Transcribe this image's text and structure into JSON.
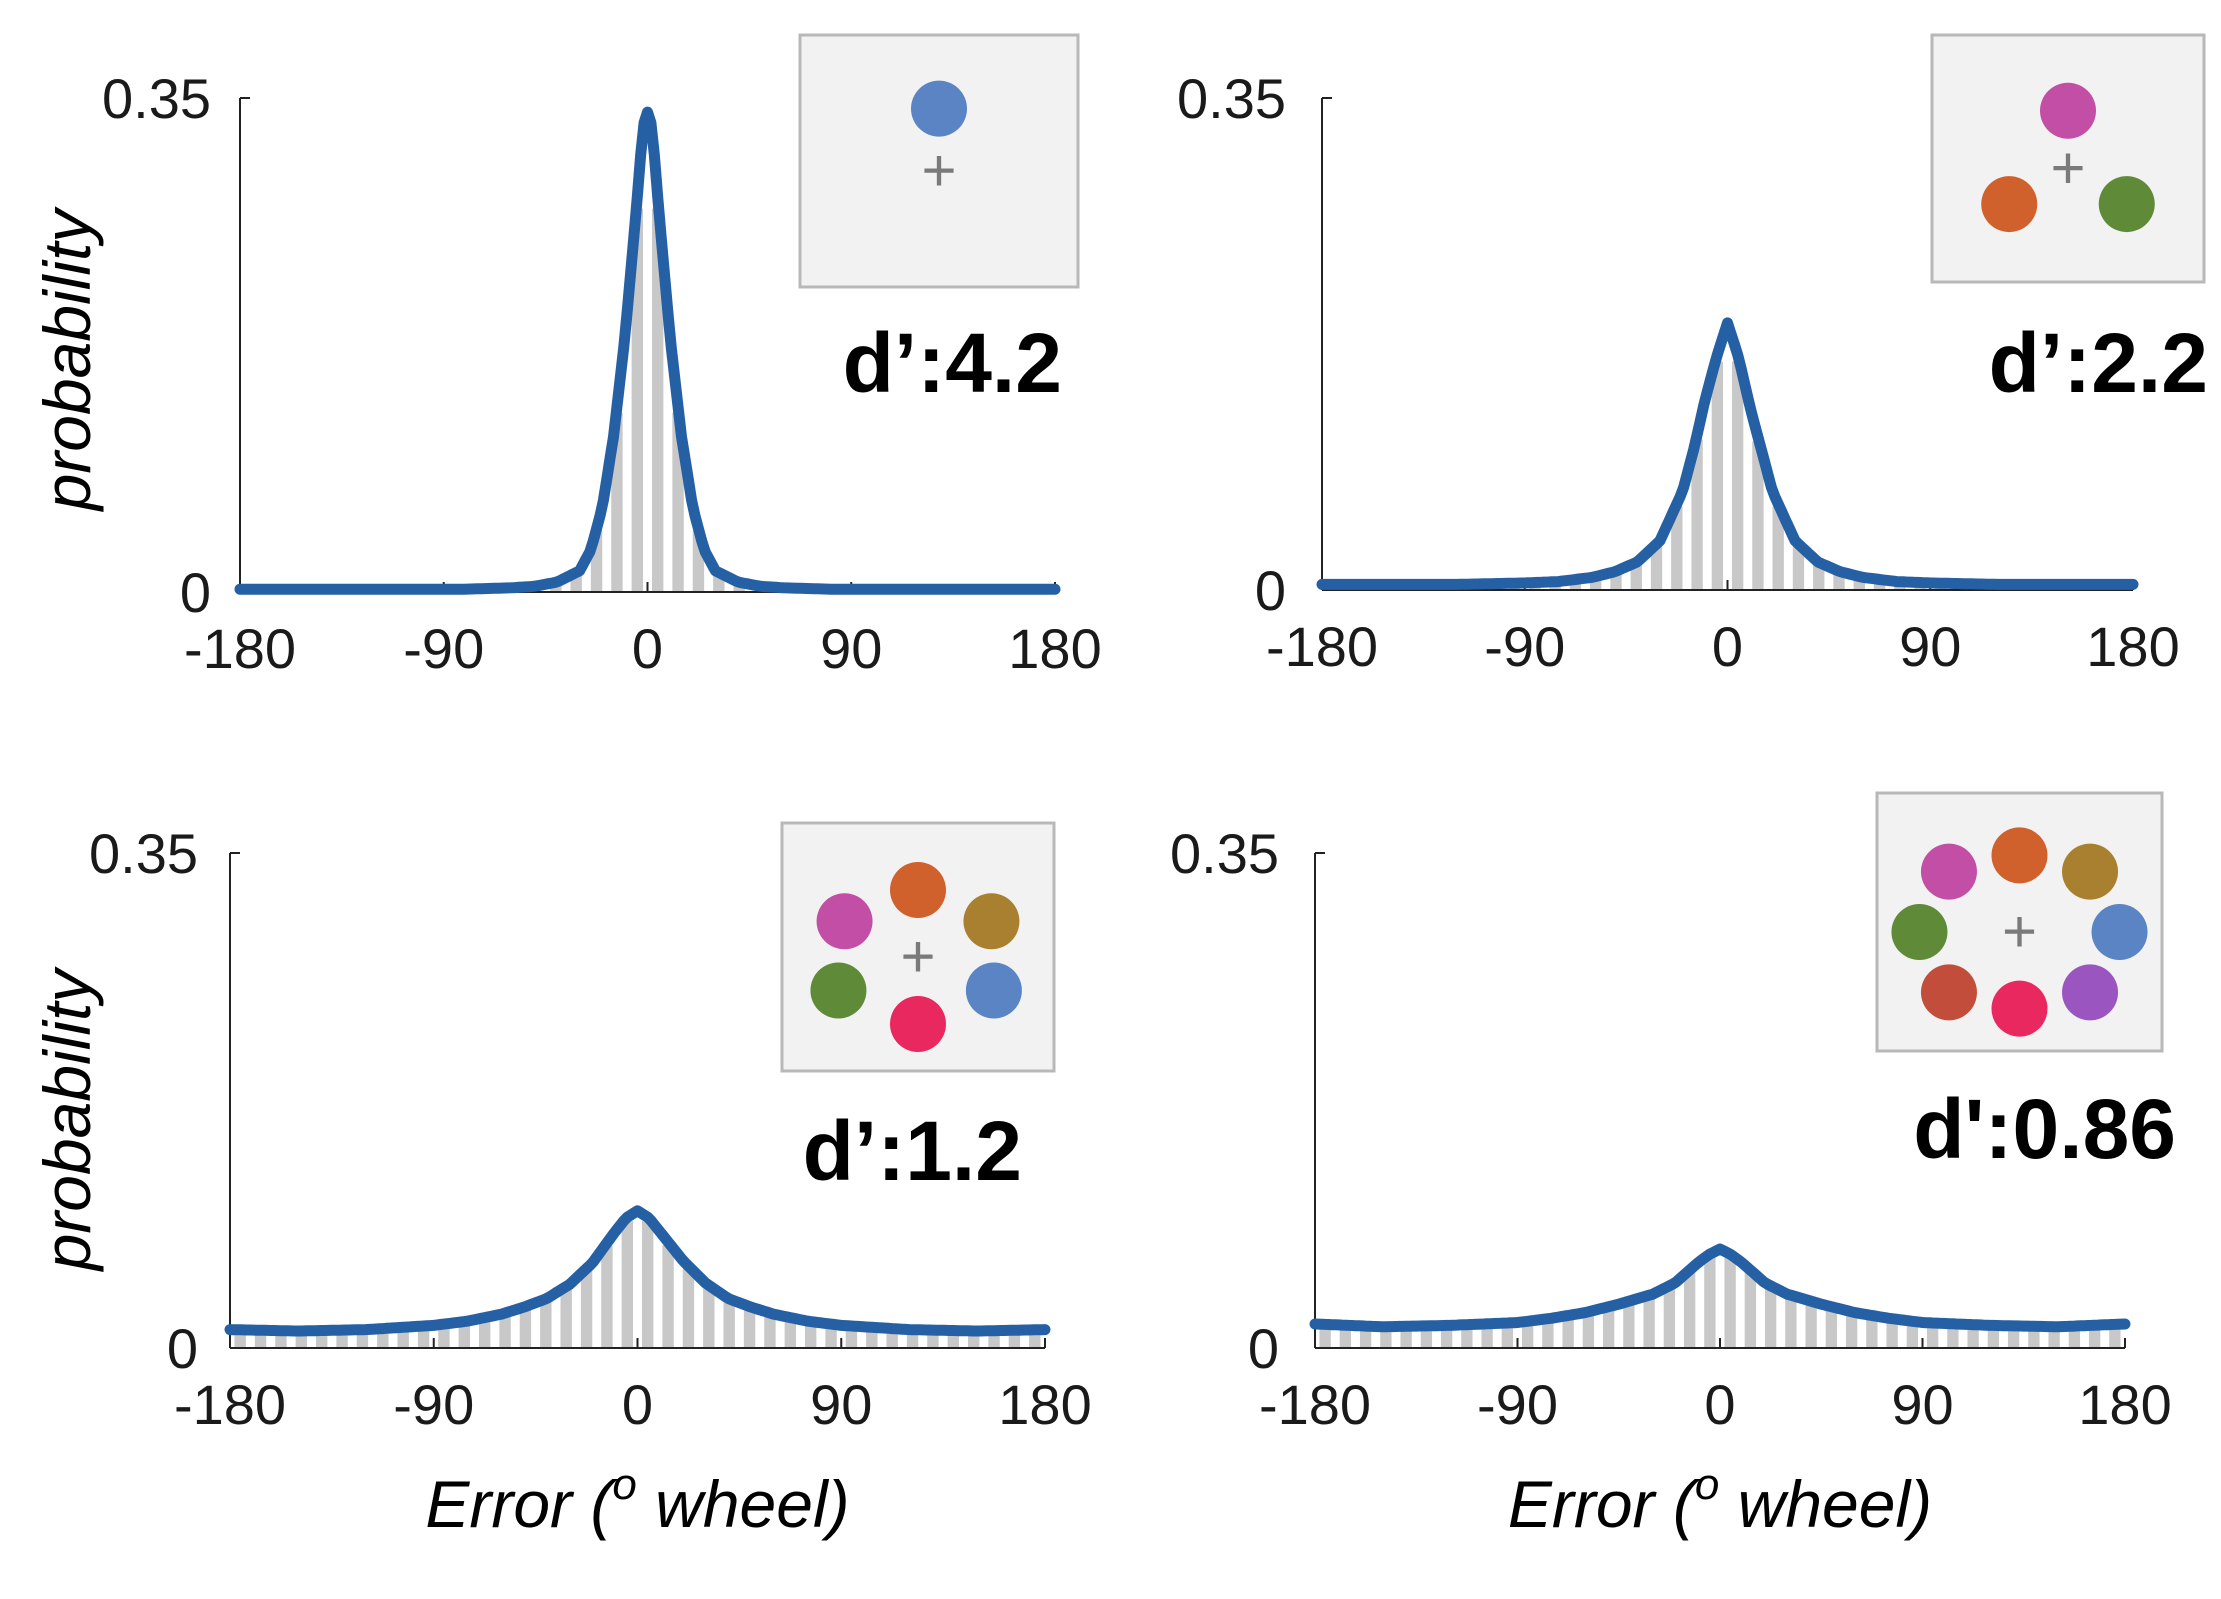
{
  "colors": {
    "curve": "#2660a4",
    "bar": "#c8c8c8",
    "inset_bg": "#f2f2f2",
    "inset_border": "#b8b8b8",
    "fixation": "#7a7a7a"
  },
  "chart_data": [
    {
      "type": "bar",
      "ylabel": "probability",
      "xlabel": "",
      "xlim": [
        -180,
        180
      ],
      "ylim": [
        0,
        0.35
      ],
      "x_ticks": [
        "-180",
        "-90",
        "0",
        "90",
        "180"
      ],
      "y_ticks": [
        "0",
        "0.35"
      ],
      "annotation": "d’:4.2",
      "set_size_colors": [
        "#5b84c4"
      ],
      "curve": {
        "x": [
          -180,
          -120,
          -80,
          -60,
          -50,
          -40,
          -30,
          -25,
          -20,
          -15,
          -10,
          -5,
          -2,
          0,
          2,
          5,
          10,
          15,
          20,
          25,
          30,
          40,
          50,
          60,
          80,
          120,
          180
        ],
        "y": [
          0.002,
          0.002,
          0.002,
          0.003,
          0.004,
          0.007,
          0.015,
          0.03,
          0.06,
          0.11,
          0.18,
          0.27,
          0.33,
          0.34,
          0.33,
          0.27,
          0.18,
          0.11,
          0.06,
          0.03,
          0.015,
          0.007,
          0.004,
          0.003,
          0.002,
          0.002,
          0.002
        ]
      }
    },
    {
      "type": "bar",
      "ylabel": "",
      "xlabel": "",
      "xlim": [
        -180,
        180
      ],
      "ylim": [
        0,
        0.35
      ],
      "x_ticks": [
        "-180",
        "-90",
        "0",
        "90",
        "180"
      ],
      "y_ticks": [
        "0",
        "0.35"
      ],
      "annotation": "d’:2.2",
      "set_size_colors": [
        "#c24fa5",
        "#d0602c",
        "#5f8a38"
      ],
      "curve": {
        "x": [
          -180,
          -150,
          -120,
          -90,
          -75,
          -60,
          -50,
          -40,
          -30,
          -20,
          -15,
          -10,
          -5,
          0,
          5,
          10,
          15,
          20,
          30,
          40,
          50,
          60,
          75,
          90,
          120,
          150,
          180
        ],
        "y": [
          0.004,
          0.004,
          0.004,
          0.005,
          0.006,
          0.009,
          0.013,
          0.02,
          0.035,
          0.07,
          0.1,
          0.135,
          0.165,
          0.19,
          0.165,
          0.13,
          0.1,
          0.07,
          0.035,
          0.02,
          0.013,
          0.009,
          0.006,
          0.005,
          0.004,
          0.004,
          0.004
        ]
      }
    },
    {
      "type": "bar",
      "ylabel": "probability",
      "xlabel": "Error (o wheel)",
      "xlim": [
        -180,
        180
      ],
      "ylim": [
        0,
        0.35
      ],
      "x_ticks": [
        "-180",
        "-90",
        "0",
        "90",
        "180"
      ],
      "y_ticks": [
        "0",
        "0.35"
      ],
      "annotation": "d’:1.2",
      "set_size_colors": [
        "#c24fa5",
        "#d0602c",
        "#a8802f",
        "#5f8a38",
        "#5b84c4",
        "#e8285e"
      ],
      "curve": {
        "x": [
          -180,
          -150,
          -120,
          -90,
          -75,
          -60,
          -50,
          -40,
          -30,
          -20,
          -10,
          -5,
          0,
          5,
          10,
          20,
          30,
          40,
          50,
          60,
          75,
          90,
          120,
          150,
          180
        ],
        "y": [
          0.013,
          0.012,
          0.013,
          0.016,
          0.019,
          0.024,
          0.029,
          0.035,
          0.045,
          0.06,
          0.082,
          0.092,
          0.097,
          0.092,
          0.082,
          0.062,
          0.046,
          0.035,
          0.029,
          0.024,
          0.019,
          0.016,
          0.013,
          0.012,
          0.013
        ]
      }
    },
    {
      "type": "bar",
      "ylabel": "",
      "xlabel": "Error (o wheel)",
      "xlim": [
        -180,
        180
      ],
      "ylim": [
        0,
        0.35
      ],
      "x_ticks": [
        "-180",
        "-90",
        "0",
        "90",
        "180"
      ],
      "y_ticks": [
        "0",
        "0.35"
      ],
      "annotation": "d':0.86",
      "set_size_colors": [
        "#c24fa5",
        "#d0602c",
        "#a8802f",
        "#5f8a38",
        "#5b84c4",
        "#c24d3a",
        "#e8285e",
        "#9b55c0"
      ],
      "curve": {
        "x": [
          -180,
          -150,
          -120,
          -90,
          -75,
          -60,
          -45,
          -30,
          -20,
          -10,
          -5,
          0,
          5,
          10,
          20,
          30,
          45,
          60,
          75,
          90,
          120,
          150,
          180
        ],
        "y": [
          0.017,
          0.015,
          0.016,
          0.018,
          0.021,
          0.025,
          0.031,
          0.038,
          0.046,
          0.06,
          0.066,
          0.07,
          0.066,
          0.06,
          0.046,
          0.038,
          0.031,
          0.025,
          0.021,
          0.018,
          0.016,
          0.015,
          0.017
        ]
      }
    }
  ]
}
